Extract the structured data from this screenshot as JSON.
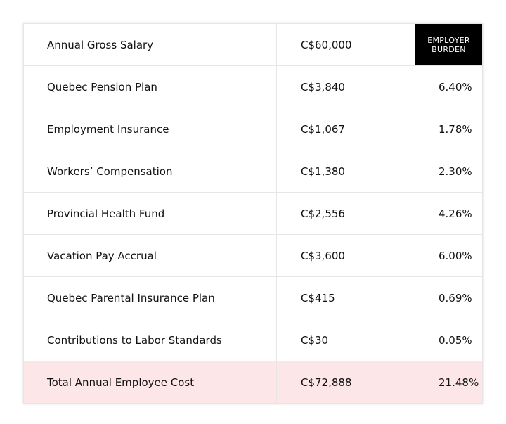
{
  "table": {
    "rows": [
      [
        "Annual Gross Salary",
        "C$60,000",
        "EMPLOYER BURDEN"
      ],
      [
        "Quebec Pension Plan",
        "C$3,840",
        "6.40%"
      ],
      [
        "Employment Insurance",
        "C$1,067",
        "1.78%"
      ],
      [
        "Workers’ Compensation",
        "C$1,380",
        "2.30%"
      ],
      [
        "Provincial Health Fund",
        "C$2,556",
        "4.26%"
      ],
      [
        "Vacation Pay Accrual",
        "C$3,600",
        "6.00%"
      ],
      [
        "Quebec Parental Insurance Plan",
        "C$415",
        "0.69%"
      ],
      [
        "Contributions to Labor Standards",
        "C$30",
        "0.05%"
      ],
      [
        "Total Annual Employee Cost",
        "C$72,888",
        "21.48%"
      ]
    ]
  }
}
